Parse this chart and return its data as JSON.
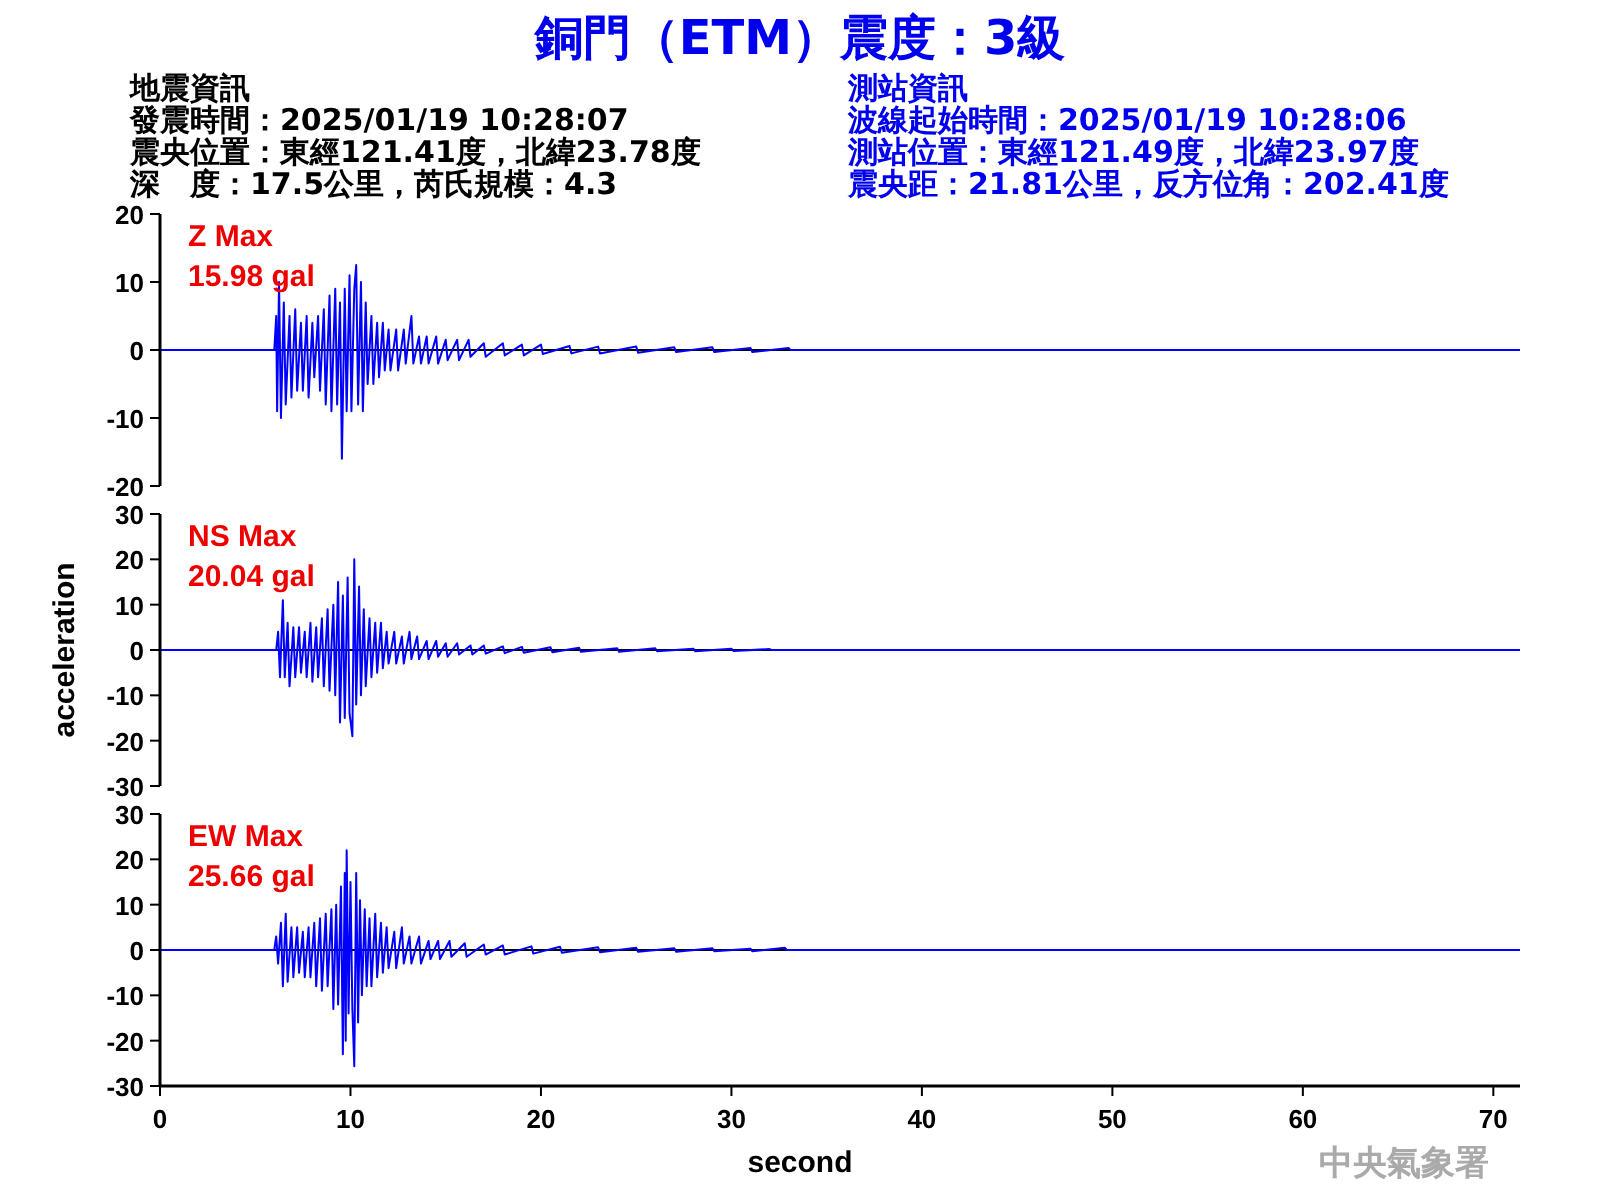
{
  "chart_data": [
    {
      "type": "line",
      "title": "銅門（ETM）震度：3級",
      "annotations": [
        "地震資訊",
        "發震時間：2025/01/19 10:28:07",
        "震央位置：東經121.41度，北緯23.78度",
        "深　度：17.5公里，芮氏規模：4.3",
        "測站資訊",
        "波線起始時間：2025/01/19 10:28:06",
        "測站位置：東經121.49度，北緯23.97度",
        "震央距：21.81公里，反方位角：202.41度",
        "Z Max",
        "15.98 gal"
      ],
      "xlim": [
        0,
        71.4
      ],
      "ylim": [
        -20,
        20
      ],
      "yticks": [
        -20,
        -10,
        0,
        10,
        20
      ],
      "tick_labels": "y",
      "grid": false,
      "ref_lines": [
        {
          "axis": "y",
          "value": 0,
          "color": "#000000"
        }
      ],
      "series": [
        {
          "color": "#0000ff",
          "x": [
            0,
            6.0,
            6.1,
            6.15,
            6.25,
            6.35,
            6.5,
            6.6,
            6.8,
            6.9,
            7.1,
            7.2,
            7.4,
            7.5,
            7.7,
            7.8,
            8.0,
            8.1,
            8.3,
            8.4,
            8.6,
            8.7,
            8.9,
            9.0,
            9.2,
            9.3,
            9.45,
            9.55,
            9.7,
            9.8,
            9.95,
            10.05,
            10.2,
            10.3,
            10.4,
            10.55,
            10.65,
            10.8,
            10.9,
            11.1,
            11.2,
            11.4,
            11.5,
            11.7,
            11.8,
            12.0,
            12.1,
            12.4,
            12.5,
            12.8,
            12.9,
            13.2,
            13.3,
            13.6,
            13.7,
            14.0,
            14.1,
            14.5,
            14.6,
            15.0,
            15.1,
            15.6,
            15.7,
            16.2,
            16.3,
            17.0,
            17.1,
            18.0,
            18.1,
            19.0,
            19.1,
            20.0,
            20.1,
            21.5,
            21.6,
            23,
            23.1,
            25,
            25.1,
            27,
            27.1,
            29,
            29.1,
            31,
            31.1,
            33,
            33.1,
            71.4
          ],
          "values": [
            0,
            0,
            5,
            -9,
            10,
            -10,
            7,
            -8,
            5,
            -7,
            6,
            -6,
            4,
            -6,
            5,
            -7,
            4,
            -4,
            5,
            -6,
            6,
            -8,
            8,
            -9,
            9,
            -8,
            7,
            -16,
            9,
            -9,
            11,
            -9,
            9,
            12.5,
            -8,
            10,
            -9,
            7,
            -5,
            5,
            -5,
            4,
            -4,
            4,
            -3,
            3,
            -3,
            3,
            -3,
            3,
            -2,
            5,
            -2,
            2,
            -2,
            2,
            -2,
            2,
            -2,
            1.5,
            -1.5,
            1.5,
            -1.5,
            1.5,
            -1,
            1,
            -1,
            1,
            -0.8,
            0.8,
            -0.8,
            0.8,
            -0.6,
            0.6,
            -0.5,
            0.5,
            -0.5,
            0.5,
            -0.4,
            0.4,
            -0.3,
            0.4,
            -0.3,
            0.3,
            -0.3,
            0.3,
            0,
            0
          ]
        }
      ]
    },
    {
      "type": "line",
      "ylabel": "acceleration",
      "annotations": [
        "NS Max",
        "20.04 gal"
      ],
      "xlim": [
        0,
        71.4
      ],
      "ylim": [
        -30,
        30
      ],
      "yticks": [
        -30,
        -20,
        -10,
        0,
        10,
        20,
        30
      ],
      "tick_labels": "y",
      "grid": false,
      "ref_lines": [
        {
          "axis": "y",
          "value": 0,
          "color": "#000000"
        }
      ],
      "series": [
        {
          "color": "#0000ff",
          "x": [
            0,
            6.1,
            6.2,
            6.3,
            6.45,
            6.55,
            6.7,
            6.8,
            7.0,
            7.1,
            7.3,
            7.4,
            7.6,
            7.7,
            7.9,
            8.0,
            8.2,
            8.3,
            8.5,
            8.6,
            8.8,
            8.9,
            9.1,
            9.2,
            9.35,
            9.45,
            9.6,
            9.7,
            9.85,
            9.95,
            10.1,
            10.2,
            10.3,
            10.45,
            10.55,
            10.7,
            10.8,
            11.0,
            11.1,
            11.3,
            11.4,
            11.6,
            11.7,
            11.9,
            12.0,
            12.3,
            12.4,
            12.7,
            12.8,
            13.1,
            13.2,
            13.5,
            13.6,
            14.0,
            14.1,
            14.5,
            14.6,
            15.0,
            15.1,
            15.6,
            15.7,
            16.3,
            16.4,
            17.0,
            17.1,
            18.0,
            18.1,
            19.0,
            19.1,
            20.5,
            20.6,
            22,
            22.1,
            24,
            24.1,
            26,
            26.1,
            28,
            28.1,
            30,
            30.1,
            32,
            32.1,
            71.4
          ],
          "values": [
            0,
            0,
            4,
            -6,
            11,
            -6,
            6,
            -8,
            5,
            -6,
            5,
            -5,
            4,
            -6,
            6,
            -7,
            5,
            -6,
            7,
            -8,
            9,
            -9,
            10,
            -10,
            15,
            -16,
            12,
            -15,
            16,
            -14,
            -19,
            20,
            -12,
            14,
            -10,
            9,
            -8,
            7,
            -6,
            6,
            -5,
            6,
            -4,
            4,
            -3,
            4,
            -3,
            3,
            -3,
            4,
            -2,
            3,
            -2,
            2,
            -2,
            2,
            -1.5,
            1.5,
            -1.5,
            1.5,
            -1,
            1,
            -1,
            1,
            -0.8,
            0.8,
            -0.7,
            0.7,
            -0.6,
            0.6,
            -0.5,
            0.5,
            -0.4,
            0.4,
            -0.4,
            0.4,
            -0.3,
            0.3,
            -0.3,
            0.3,
            -0.2,
            0.2,
            0,
            0
          ]
        }
      ]
    },
    {
      "type": "line",
      "xlabel": "second",
      "annotations": [
        "EW Max",
        "25.66 gal",
        "中央氣象署"
      ],
      "xlim": [
        0,
        71.4
      ],
      "xticks": [
        0,
        10,
        20,
        30,
        40,
        50,
        60,
        70
      ],
      "ylim": [
        -30,
        30
      ],
      "yticks": [
        -30,
        -20,
        -10,
        0,
        10,
        20,
        30
      ],
      "grid": false,
      "ref_lines": [
        {
          "axis": "y",
          "value": 0,
          "color": "#000000"
        }
      ],
      "series": [
        {
          "color": "#0000ff",
          "x": [
            0,
            6.0,
            6.1,
            6.2,
            6.35,
            6.45,
            6.6,
            6.7,
            6.9,
            7.0,
            7.2,
            7.3,
            7.5,
            7.6,
            7.8,
            7.9,
            8.1,
            8.2,
            8.4,
            8.5,
            8.7,
            8.8,
            9.0,
            9.1,
            9.25,
            9.35,
            9.5,
            9.6,
            9.7,
            9.75,
            9.8,
            9.9,
            10.0,
            10.1,
            10.2,
            10.3,
            10.4,
            10.5,
            10.6,
            10.75,
            10.85,
            11.0,
            11.1,
            11.3,
            11.4,
            11.6,
            11.7,
            11.9,
            12.0,
            12.3,
            12.4,
            12.7,
            12.8,
            13.1,
            13.2,
            13.6,
            13.7,
            14.1,
            14.2,
            14.6,
            14.7,
            15.2,
            15.3,
            16.0,
            16.1,
            17.0,
            17.1,
            18.0,
            18.1,
            19.5,
            19.6,
            21,
            21.1,
            23,
            23.1,
            25,
            25.1,
            27,
            27.1,
            29,
            29.1,
            31,
            31.1,
            32.8,
            32.9,
            71.4
          ],
          "values": [
            0,
            0,
            3,
            -3,
            6,
            -8,
            8,
            -7,
            5,
            -6,
            5,
            -5,
            4,
            -6,
            5,
            -6,
            6,
            -8,
            7,
            -9,
            8,
            -8,
            9,
            -13,
            10,
            -12,
            14,
            -23,
            17,
            -20,
            22,
            -14,
            15,
            -13,
            -25.66,
            17,
            -16,
            11,
            -10,
            9,
            -8,
            7,
            -8,
            8,
            -6,
            6,
            -5,
            5,
            -4,
            4,
            -4,
            5,
            -3,
            3,
            -3,
            3,
            -3,
            2,
            -2,
            2,
            -2,
            2,
            -1.5,
            1.5,
            -1.5,
            1.2,
            -1,
            1,
            -1,
            0.8,
            -0.8,
            0.7,
            -0.6,
            0.6,
            -0.5,
            0.5,
            -0.4,
            0.4,
            -0.4,
            0.4,
            -0.3,
            0.3,
            -0.3,
            0.5,
            0,
            0
          ]
        }
      ]
    }
  ]
}
